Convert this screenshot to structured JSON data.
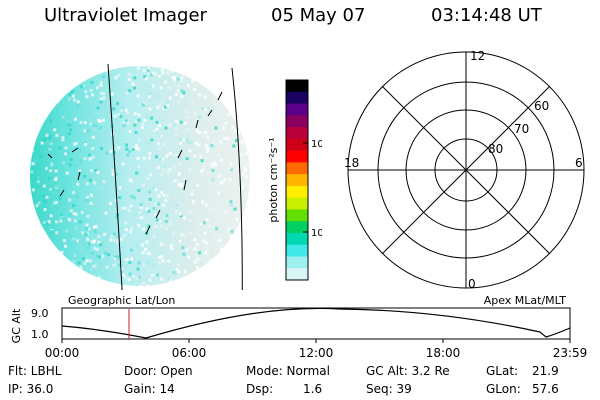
{
  "header": {
    "title": "Ultraviolet Imager",
    "date": "05 May 07",
    "time": "03:14:48 UT"
  },
  "colorbar": {
    "unit_label": "photon cm⁻²s⁻¹",
    "ticks": [
      "100",
      "10"
    ],
    "colors": [
      "#000000",
      "#1a0060",
      "#5a008a",
      "#8a0060",
      "#b8003a",
      "#d00018",
      "#ff0000",
      "#ff6a00",
      "#ffb400",
      "#ffee00",
      "#c8f000",
      "#64e000",
      "#00d060",
      "#00d8b0",
      "#40e8e8",
      "#9ef0f0",
      "#d8f4f4"
    ]
  },
  "polar": {
    "mlt_labels": {
      "top": "12",
      "left": "18",
      "right": "6",
      "bottom": "0"
    },
    "lat_labels": [
      "60",
      "70",
      "80"
    ]
  },
  "timeline": {
    "left_title": "Geographic Lat/Lon",
    "right_title": "Apex MLat/MLT",
    "axis_label": "GC Alt",
    "alt_ticks": [
      "9.0",
      "1.0"
    ],
    "time_ticks": [
      "00:00",
      "06:00",
      "12:00",
      "18:00",
      "23:59"
    ],
    "marker_color": "#cc2020"
  },
  "status": {
    "flt": "Flt: LBHL",
    "ip": "IP: 36.0",
    "door": "Door: Open",
    "gain": "Gain: 14",
    "mode": "Mode: Normal",
    "dsp_label": "Dsp:",
    "dsp_value": "1.6",
    "gc_alt": "GC Alt: 3.2 Re",
    "seq": "Seq: 39",
    "glat_label": "GLat:",
    "glat_value": "21.9",
    "glon_label": "GLon:",
    "glon_value": "57.6"
  }
}
